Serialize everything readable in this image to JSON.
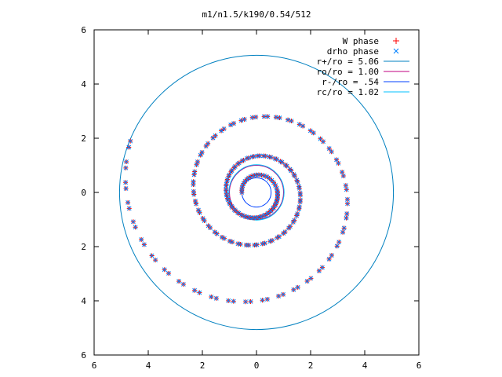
{
  "chart_data": {
    "type": "scatter",
    "title": "m1/n1.5/k190/0.54/512",
    "xlabel": "",
    "ylabel": "",
    "xlim": [
      -6,
      6
    ],
    "ylim": [
      -6,
      6
    ],
    "x_tick_labels": [
      "6",
      "4",
      "2",
      "0",
      "2",
      "4",
      "6"
    ],
    "y_tick_labels": [
      "6",
      "4",
      "2",
      "0",
      "2",
      "4",
      "6"
    ],
    "grid": false,
    "legend_position": "top-right",
    "series": [
      {
        "name": "W phase",
        "kind": "points",
        "marker": "plus",
        "color": "#ff0000",
        "description_note": "two-armed spiral of points",
        "spiral": {
          "a": 0.54,
          "b": 0.116,
          "theta_start": 3.14,
          "theta_end": 26.2,
          "n_arm1": 150,
          "n_arm2": 150,
          "max_radius": 5.06
        }
      },
      {
        "name": "drho phase",
        "kind": "points",
        "marker": "cross",
        "color": "#0080ff"
      },
      {
        "name": "r+/ro = 5.06",
        "kind": "circle",
        "radius": 5.06,
        "color": "#0080c0"
      },
      {
        "name": "ro/ro = 1.00",
        "kind": "circle",
        "radius": 1.0,
        "color": "#c00080"
      },
      {
        "name": "r-/ro = .54",
        "kind": "circle",
        "radius": 0.54,
        "color": "#0040ff"
      },
      {
        "name": "rc/ro = 1.02",
        "kind": "circle",
        "radius": 1.02,
        "color": "#00c0ff"
      }
    ]
  }
}
